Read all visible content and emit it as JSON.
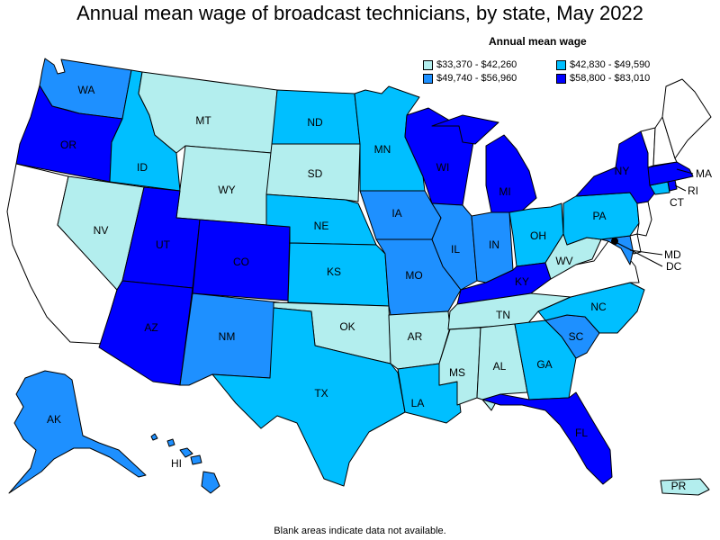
{
  "title": "Annual mean wage of broadcast technicians, by state, May 2022",
  "legend": {
    "title": "Annual mean wage",
    "items": [
      {
        "label": "$33,370 - $42,260",
        "color": "#b3eeee"
      },
      {
        "label": "$42,830 - $49,590",
        "color": "#00bfff"
      },
      {
        "label": "$49,740 - $56,960",
        "color": "#1e90ff"
      },
      {
        "label": "$58,800 - $83,010",
        "color": "#0000ff"
      }
    ]
  },
  "footnote": "Blank areas indicate data not available.",
  "states": {
    "WA": {
      "label": "WA",
      "range": "$49,740 - $56,960",
      "color": "#1e90ff"
    },
    "OR": {
      "label": "OR",
      "range": "$58,800 - $83,010",
      "color": "#0000ff"
    },
    "CA": {
      "label": "",
      "range": "",
      "color": "#ffffff"
    },
    "ID": {
      "label": "ID",
      "range": "$42,830 - $49,590",
      "color": "#00bfff"
    },
    "NV": {
      "label": "NV",
      "range": "$33,370 - $42,260",
      "color": "#b3eeee"
    },
    "MT": {
      "label": "MT",
      "range": "$33,370 - $42,260",
      "color": "#b3eeee"
    },
    "WY": {
      "label": "WY",
      "range": "$33,370 - $42,260",
      "color": "#b3eeee"
    },
    "UT": {
      "label": "UT",
      "range": "$58,800 - $83,010",
      "color": "#0000ff"
    },
    "AZ": {
      "label": "AZ",
      "range": "$58,800 - $83,010",
      "color": "#0000ff"
    },
    "CO": {
      "label": "CO",
      "range": "$58,800 - $83,010",
      "color": "#0000ff"
    },
    "NM": {
      "label": "NM",
      "range": "$49,740 - $56,960",
      "color": "#1e90ff"
    },
    "ND": {
      "label": "ND",
      "range": "$42,830 - $49,590",
      "color": "#00bfff"
    },
    "SD": {
      "label": "SD",
      "range": "$33,370 - $42,260",
      "color": "#b3eeee"
    },
    "NE": {
      "label": "NE",
      "range": "$42,830 - $49,590",
      "color": "#00bfff"
    },
    "KS": {
      "label": "KS",
      "range": "$42,830 - $49,590",
      "color": "#00bfff"
    },
    "OK": {
      "label": "OK",
      "range": "$33,370 - $42,260",
      "color": "#b3eeee"
    },
    "TX": {
      "label": "TX",
      "range": "$42,830 - $49,590",
      "color": "#00bfff"
    },
    "MN": {
      "label": "MN",
      "range": "$42,830 - $49,590",
      "color": "#00bfff"
    },
    "IA": {
      "label": "IA",
      "range": "$49,740 - $56,960",
      "color": "#1e90ff"
    },
    "MO": {
      "label": "MO",
      "range": "$49,740 - $56,960",
      "color": "#1e90ff"
    },
    "AR": {
      "label": "AR",
      "range": "$33,370 - $42,260",
      "color": "#b3eeee"
    },
    "LA": {
      "label": "LA",
      "range": "$42,830 - $49,590",
      "color": "#00bfff"
    },
    "WI": {
      "label": "WI",
      "range": "$58,800 - $83,010",
      "color": "#0000ff"
    },
    "IL": {
      "label": "IL",
      "range": "$49,740 - $56,960",
      "color": "#1e90ff"
    },
    "MI": {
      "label": "MI",
      "range": "$58,800 - $83,010",
      "color": "#0000ff"
    },
    "IN": {
      "label": "IN",
      "range": "$49,740 - $56,960",
      "color": "#1e90ff"
    },
    "OH": {
      "label": "OH",
      "range": "$42,830 - $49,590",
      "color": "#00bfff"
    },
    "KY": {
      "label": "KY",
      "range": "$58,800 - $83,010",
      "color": "#0000ff"
    },
    "TN": {
      "label": "TN",
      "range": "$33,370 - $42,260",
      "color": "#b3eeee"
    },
    "MS": {
      "label": "MS",
      "range": "$33,370 - $42,260",
      "color": "#b3eeee"
    },
    "AL": {
      "label": "AL",
      "range": "$33,370 - $42,260",
      "color": "#b3eeee"
    },
    "GA": {
      "label": "GA",
      "range": "$42,830 - $49,590",
      "color": "#00bfff"
    },
    "FL": {
      "label": "FL",
      "range": "$58,800 - $83,010",
      "color": "#0000ff"
    },
    "SC": {
      "label": "SC",
      "range": "$49,740 - $56,960",
      "color": "#1e90ff"
    },
    "NC": {
      "label": "NC",
      "range": "$42,830 - $49,590",
      "color": "#00bfff"
    },
    "VA": {
      "label": "",
      "range": "",
      "color": "#ffffff"
    },
    "WV": {
      "label": "WV",
      "range": "$33,370 - $42,260",
      "color": "#b3eeee"
    },
    "PA": {
      "label": "PA",
      "range": "$42,830 - $49,590",
      "color": "#00bfff"
    },
    "NY": {
      "label": "NY",
      "range": "$58,800 - $83,010",
      "color": "#0000ff"
    },
    "VT": {
      "label": "",
      "range": "",
      "color": "#ffffff"
    },
    "NH": {
      "label": "",
      "range": "",
      "color": "#ffffff"
    },
    "ME": {
      "label": "",
      "range": "",
      "color": "#ffffff"
    },
    "MA": {
      "label": "MA",
      "range": "$58,800 - $83,010",
      "color": "#0000ff"
    },
    "RI": {
      "label": "RI",
      "range": "$58,800 - $83,010",
      "color": "#0000ff"
    },
    "CT": {
      "label": "CT",
      "range": "$42,830 - $49,590",
      "color": "#00bfff"
    },
    "NJ": {
      "label": "",
      "range": "",
      "color": "#ffffff"
    },
    "DE": {
      "label": "",
      "range": "",
      "color": "#ffffff"
    },
    "MD": {
      "label": "MD",
      "range": "$49,740 - $56,960",
      "color": "#1e90ff"
    },
    "DC": {
      "label": "DC",
      "range": "",
      "color": "#000000"
    },
    "AK": {
      "label": "AK",
      "range": "$49,740 - $56,960",
      "color": "#1e90ff"
    },
    "HI": {
      "label": "HI",
      "range": "$49,740 - $56,960",
      "color": "#1e90ff"
    },
    "PR": {
      "label": "PR",
      "range": "$33,370 - $42,260",
      "color": "#b3eeee"
    }
  }
}
